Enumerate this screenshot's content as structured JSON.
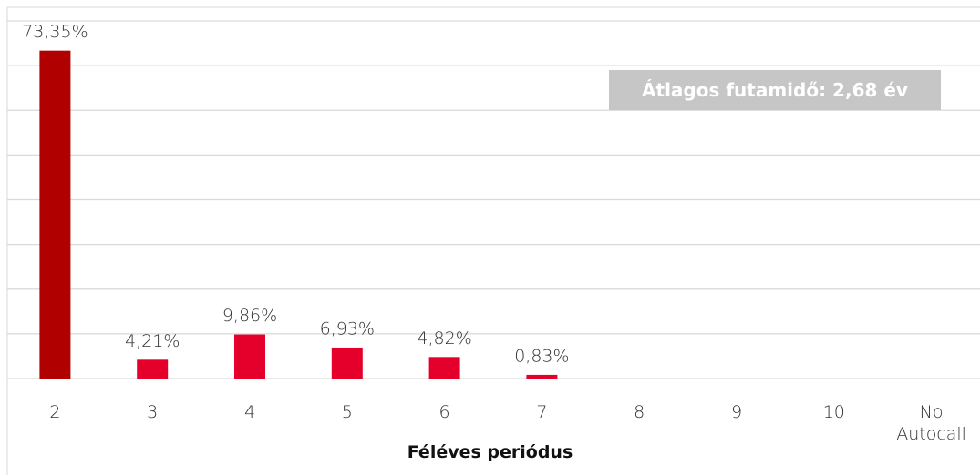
{
  "chart_data": {
    "type": "bar",
    "categories": [
      "2",
      "3",
      "4",
      "5",
      "6",
      "7",
      "8",
      "9",
      "10",
      "No Autocall"
    ],
    "values": [
      73.35,
      4.21,
      9.86,
      6.93,
      4.82,
      0.83,
      null,
      null,
      null,
      null
    ],
    "value_labels": [
      "73,35%",
      "4,21%",
      "9,86%",
      "6,93%",
      "4,82%",
      "0,83%",
      null,
      null,
      null,
      null
    ],
    "colors": [
      "#b00000",
      "#e4002b",
      "#e4002b",
      "#e4002b",
      "#e4002b",
      "#e4002b",
      "#e4002b",
      "#e4002b",
      "#e4002b",
      "#e4002b"
    ],
    "ylim": [
      0,
      80
    ],
    "yticks": [
      0,
      10,
      20,
      30,
      40,
      50,
      60,
      70,
      80
    ],
    "grid": true,
    "x_label": "Féléves periódus",
    "annotation": "Átlagos futamidő: 2,68 év"
  }
}
